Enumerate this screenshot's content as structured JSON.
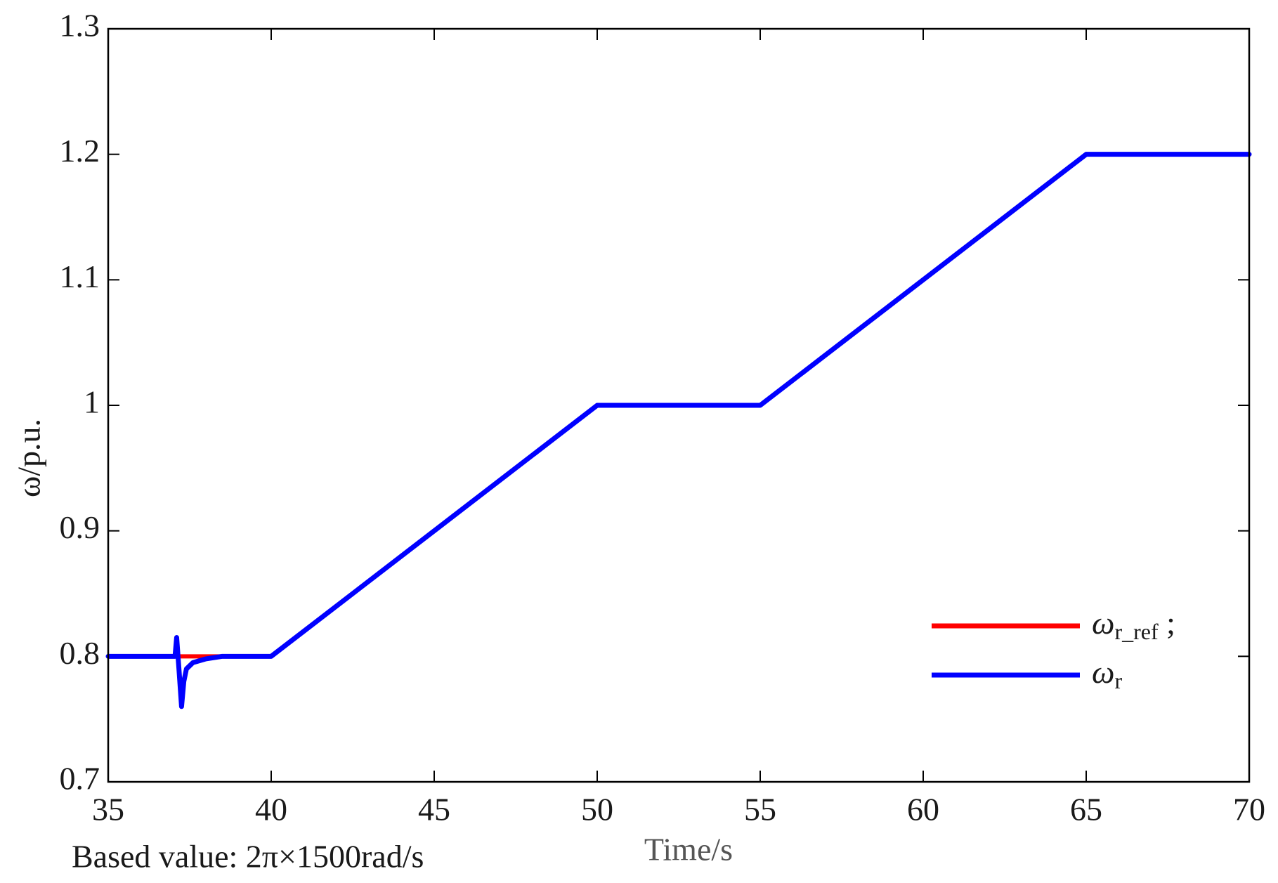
{
  "chart_data": {
    "type": "line",
    "ylabel": "ω/p.u.",
    "xlabel": "Time/s",
    "annotation": "Based value: 2π×1500rad/s",
    "xlim": [
      35,
      70
    ],
    "xticks": [
      35,
      40,
      45,
      50,
      55,
      60,
      65,
      70
    ],
    "ylim": [
      0.7,
      1.3
    ],
    "yticks": [
      0.7,
      0.8,
      0.9,
      1,
      1.1,
      1.2,
      1.3
    ],
    "legend": "lower right",
    "series": [
      {
        "name": "ωr_ref ;",
        "color": "#ff0000",
        "x": [
          35,
          40,
          50,
          55,
          65,
          70
        ],
        "values": [
          0.8,
          0.8,
          1.0,
          1.0,
          1.2,
          1.2
        ]
      },
      {
        "name": "ωr",
        "color": "#0000ff",
        "x": [
          35,
          37.05,
          37.1,
          37.17,
          37.25,
          37.32,
          37.4,
          37.6,
          38,
          38.5,
          40,
          50,
          55,
          65,
          70
        ],
        "values": [
          0.8,
          0.8,
          0.815,
          0.79,
          0.76,
          0.78,
          0.79,
          0.795,
          0.798,
          0.8,
          0.8,
          1.0,
          1.0,
          1.2,
          1.2
        ]
      }
    ]
  }
}
